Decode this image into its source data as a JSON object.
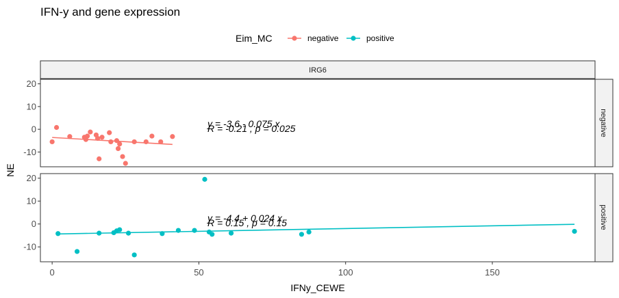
{
  "chart_data": {
    "type": "scatter",
    "title": "IFN-y and gene expression",
    "xlabel": "IFNy_CEWE",
    "ylabel": "NE",
    "xlim": [
      -4,
      185
    ],
    "x_ticks": [
      0,
      50,
      100,
      150
    ],
    "column_facet": "IRG6",
    "legend": {
      "title": "Eim_MC",
      "position": "top"
    },
    "panels": [
      {
        "row_label": "negative",
        "series": "negative",
        "color": "#F8766D",
        "ylim": [
          -16.5,
          22
        ],
        "y_ticks": [
          -10,
          0,
          10,
          20
        ],
        "points": [
          [
            0,
            -5.5
          ],
          [
            1.5,
            0.8
          ],
          [
            6,
            -3.2
          ],
          [
            11,
            -3.5
          ],
          [
            11.5,
            -4.5
          ],
          [
            12,
            -3
          ],
          [
            13,
            -1.2
          ],
          [
            15,
            -2.5
          ],
          [
            15.5,
            -4
          ],
          [
            16,
            -13
          ],
          [
            17,
            -3.5
          ],
          [
            19.5,
            -1.5
          ],
          [
            20,
            -5.5
          ],
          [
            22,
            -5
          ],
          [
            22.5,
            -8.5
          ],
          [
            23,
            -6.5
          ],
          [
            24,
            -12
          ],
          [
            25,
            -15
          ],
          [
            28,
            -5.5
          ],
          [
            32,
            -5.5
          ],
          [
            34,
            -3
          ],
          [
            37,
            -5.5
          ],
          [
            41,
            -3.2
          ]
        ],
        "fit": {
          "x": [
            0,
            41
          ],
          "y": [
            -3.6,
            -6.675
          ]
        },
        "annotations": [
          "y = -3.6 - 0.075 x",
          "R = -0.21 , p = 0.025"
        ]
      },
      {
        "row_label": "positive",
        "series": "positive",
        "color": "#00BFC4",
        "ylim": [
          -16.5,
          22
        ],
        "y_ticks": [
          -10,
          0,
          10,
          20
        ],
        "points": [
          [
            2,
            -4.2
          ],
          [
            8.5,
            -12
          ],
          [
            16,
            -4
          ],
          [
            21,
            -3.8
          ],
          [
            22,
            -3
          ],
          [
            23,
            -2.5
          ],
          [
            26,
            -4
          ],
          [
            28,
            -13.5
          ],
          [
            37.5,
            -4.2
          ],
          [
            43,
            -2.8
          ],
          [
            48.5,
            -2.8
          ],
          [
            52,
            19.5
          ],
          [
            53.5,
            -3.5
          ],
          [
            54.5,
            -4.5
          ],
          [
            61,
            -4
          ],
          [
            85,
            -4.5
          ],
          [
            87.5,
            -3.5
          ],
          [
            178,
            -3.2
          ]
        ],
        "fit": {
          "x": [
            2,
            178
          ],
          "y": [
            -4.352,
            -0.128
          ]
        },
        "annotations": [
          "y = -4.4 + 0.024 x",
          "R = 0.15 , p = 0.15"
        ]
      }
    ]
  }
}
